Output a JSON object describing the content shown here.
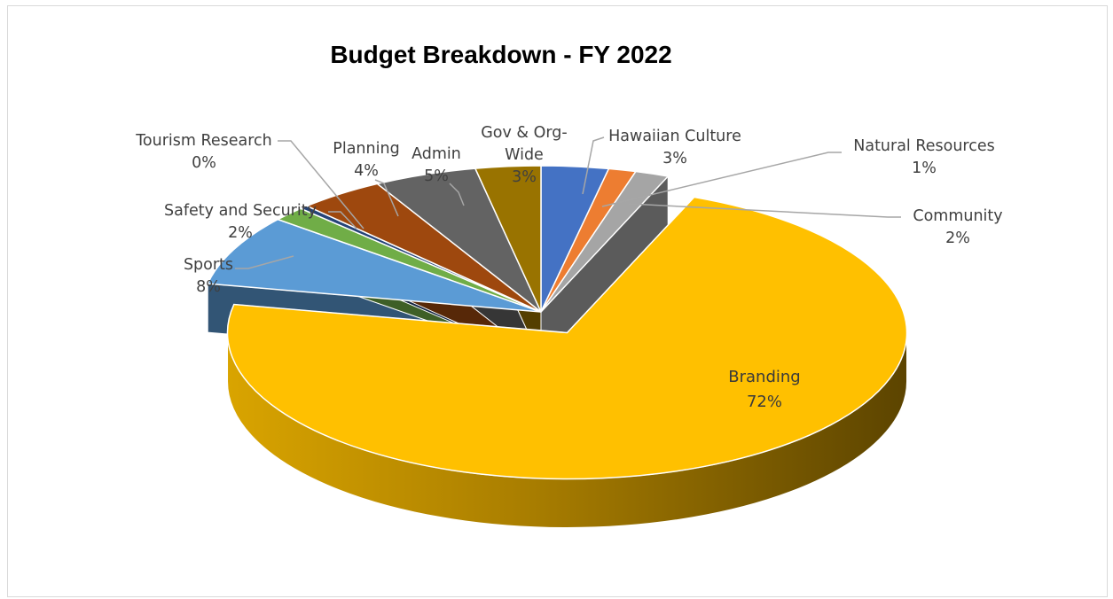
{
  "chart_data": {
    "type": "pie",
    "title": "Budget Breakdown - FY 2022",
    "three_d": true,
    "slices": [
      {
        "label": "Hawaiian Culture",
        "value_label": "3%",
        "value": 3.2,
        "color": "#4472C4"
      },
      {
        "label": "Natural Resources",
        "value_label": "1%",
        "value": 1.3,
        "color": "#ED7D31"
      },
      {
        "label": "Community",
        "value_label": "2%",
        "value": 1.6,
        "color": "#A5A5A5"
      },
      {
        "label": "Branding",
        "value_label": "72%",
        "value": 72.0,
        "color": "#FFC000",
        "exploded": true
      },
      {
        "label": "Sports",
        "value_label": "8%",
        "value": 7.8,
        "color": "#5B9BD5"
      },
      {
        "label": "Safety and Security",
        "value_label": "2%",
        "value": 1.6,
        "color": "#70AD47"
      },
      {
        "label": "Tourism Research",
        "value_label": "0%",
        "value": 0.4,
        "color": "#264478"
      },
      {
        "label": "Planning",
        "value_label": "4%",
        "value": 4.1,
        "color": "#9E480E"
      },
      {
        "label": "Admin",
        "value_label": "5%",
        "value": 4.9,
        "color": "#636363"
      },
      {
        "label": "Gov & Org-Wide",
        "value_label": "3%",
        "value": 3.1,
        "color": "#997300"
      }
    ]
  }
}
